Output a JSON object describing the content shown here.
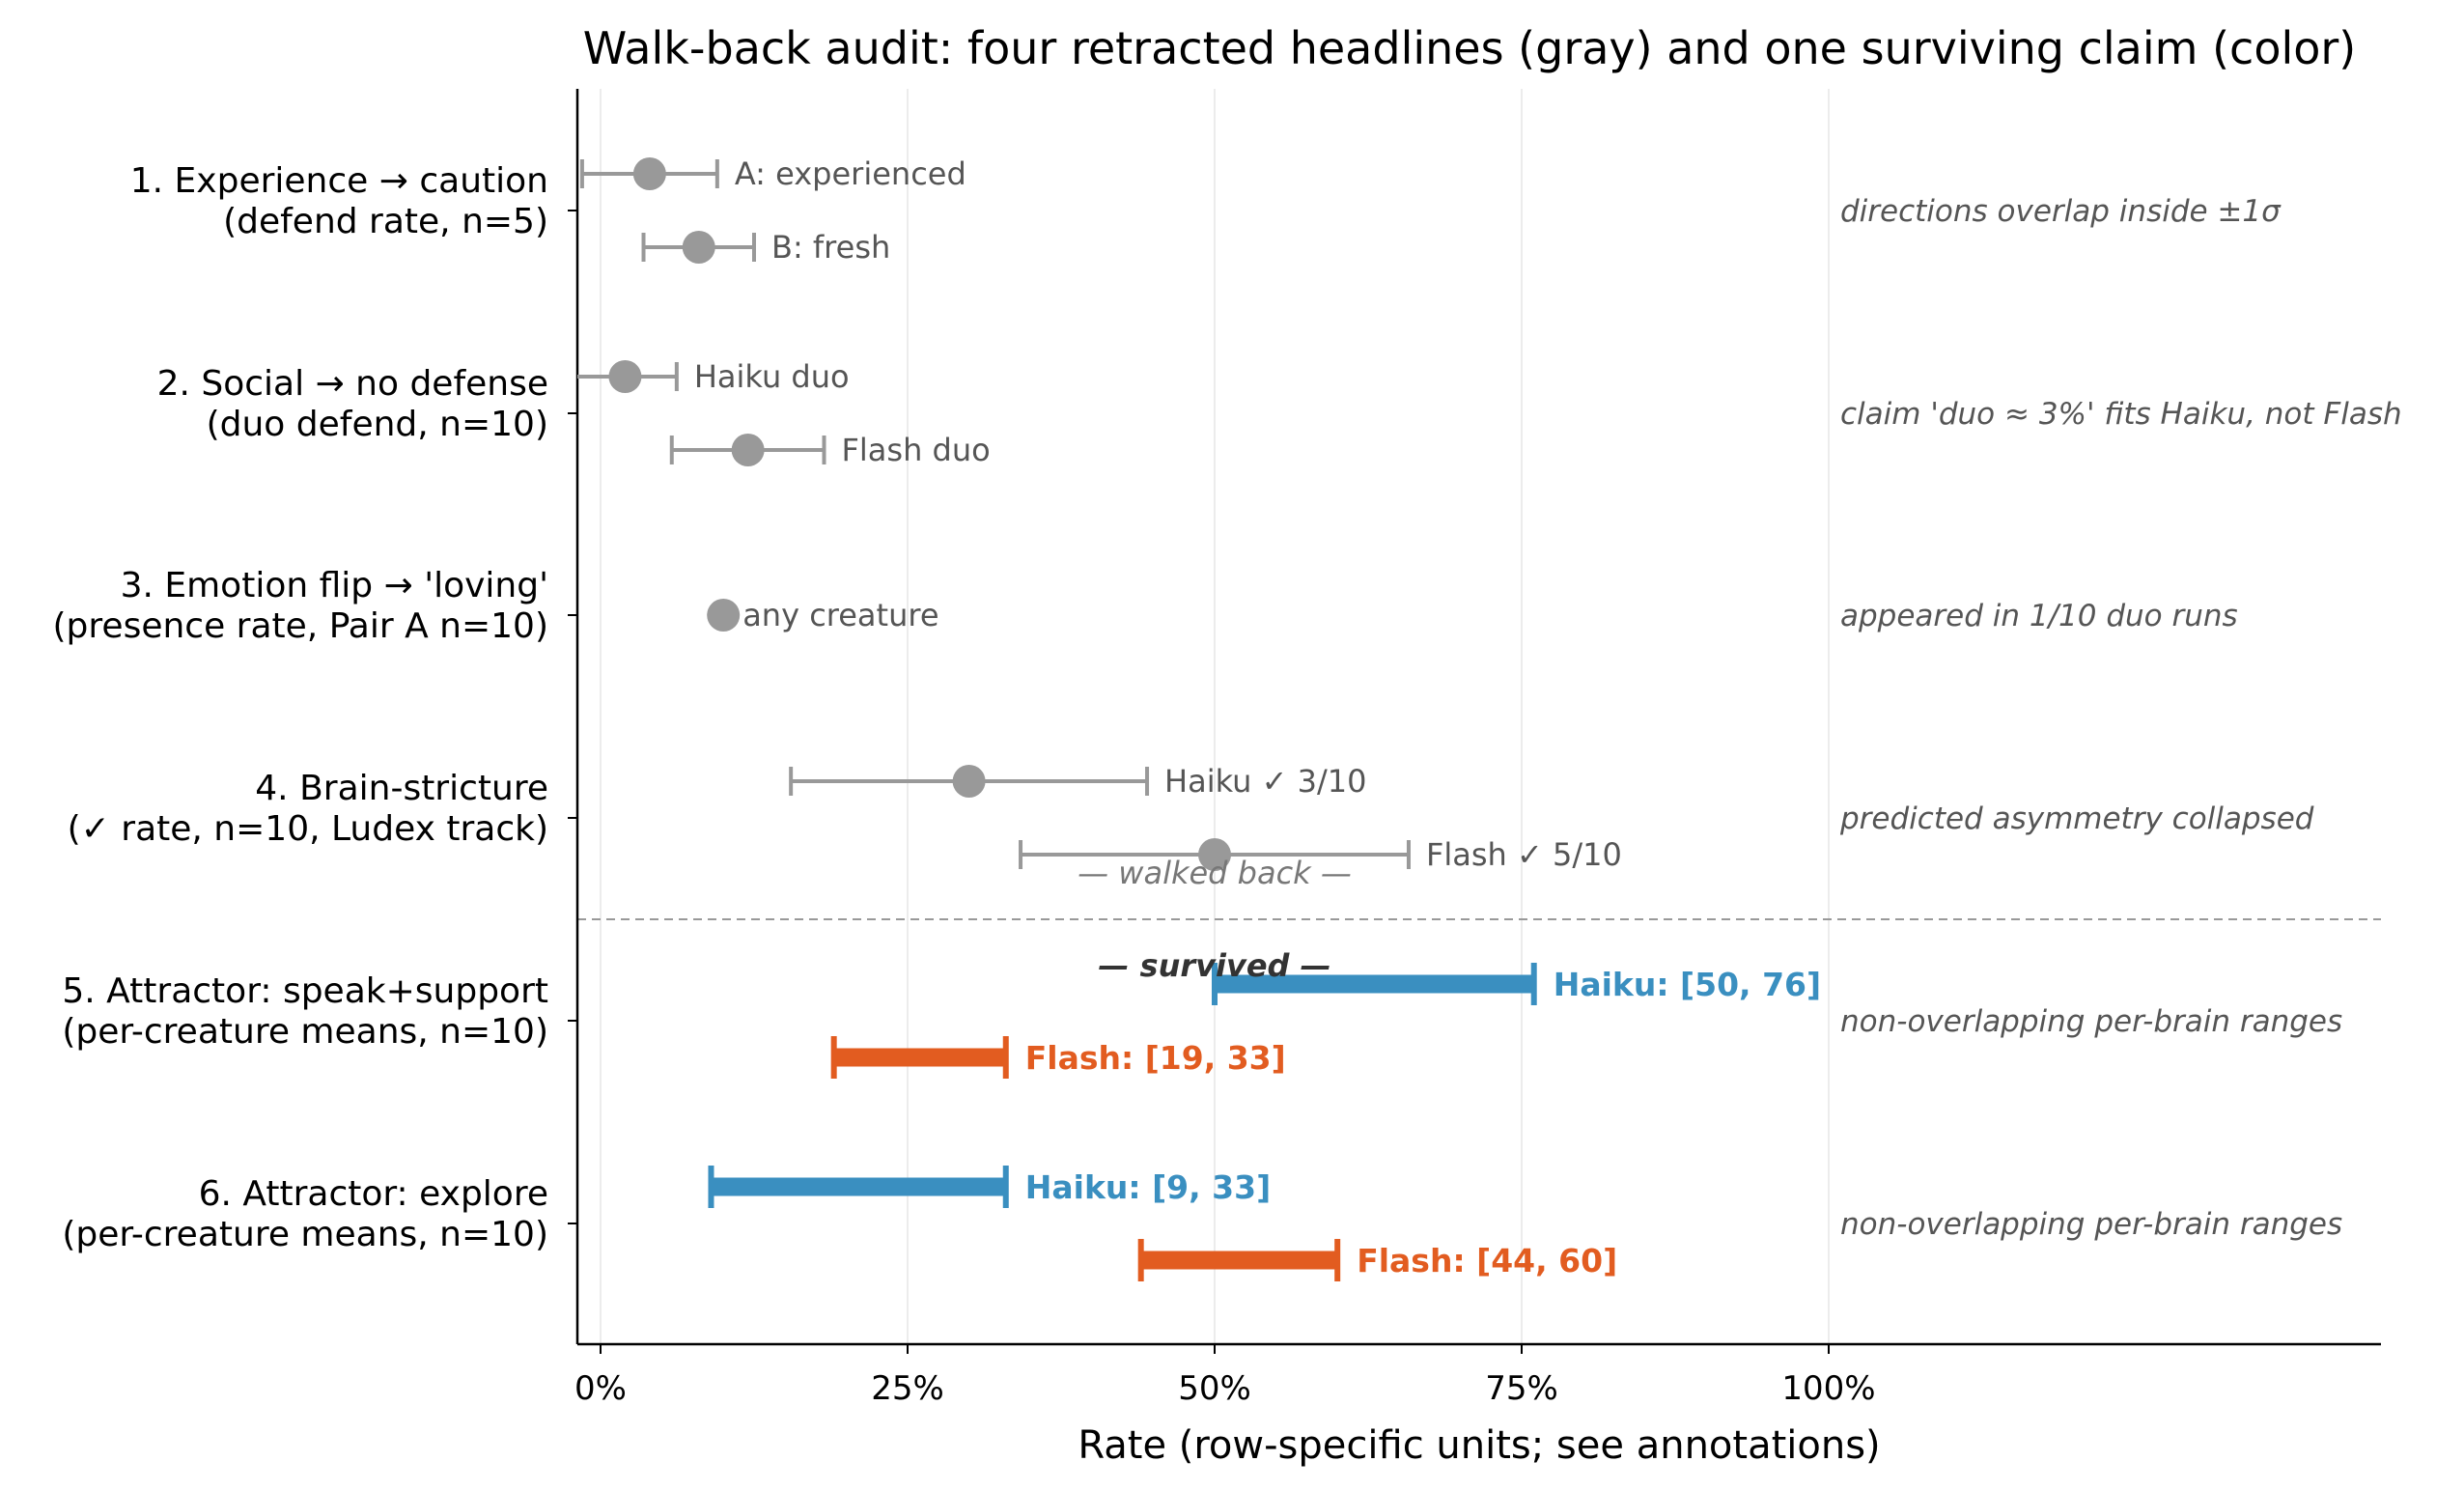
{
  "chart_data": {
    "type": "forest",
    "title": "Walk-back audit: four retracted headlines (gray) and one surviving claim (color)",
    "xlabel": "Rate (row-specific units; see annotations)",
    "xlim": [
      -2,
      145
    ],
    "x_ticks": [
      0,
      25,
      50,
      75,
      100
    ],
    "x_tick_labels": [
      "0%",
      "25%",
      "50%",
      "75%",
      "100%"
    ],
    "grid": "vertical",
    "colors": {
      "gray": "#999999",
      "haiku": "#3a8fc0",
      "flash": "#e25c20"
    },
    "rows": [
      {
        "label_line1": "1. Experience → caution",
        "label_line2": "(defend rate, n=5)",
        "note": "directions overlap inside ±1σ",
        "status": "walked back",
        "items": [
          {
            "label": "A: experienced",
            "value": 4,
            "low": -1.5,
            "high": 9.5,
            "color": "gray"
          },
          {
            "label": "B: fresh",
            "value": 8,
            "low": 3.5,
            "high": 12.5,
            "color": "gray"
          }
        ]
      },
      {
        "label_line1": "2. Social → no defense",
        "label_line2": "(duo defend, n=10)",
        "note": "claim 'duo ≈ 3%' fits Haiku, not Flash",
        "status": "walked back",
        "items": [
          {
            "label": "Haiku duo",
            "value": 2,
            "low": -2,
            "high": 6.2,
            "color": "gray"
          },
          {
            "label": "Flash duo",
            "value": 12,
            "low": 5.8,
            "high": 18.2,
            "color": "gray"
          }
        ]
      },
      {
        "label_line1": "3. Emotion flip → 'loving'",
        "label_line2": "(presence rate, Pair A n=10)",
        "note": "appeared in 1/10 duo runs",
        "status": "walked back",
        "items": [
          {
            "label": "any creature",
            "value": 10,
            "color": "gray"
          }
        ]
      },
      {
        "label_line1": "4. Brain-stricture",
        "label_line2": "(✓ rate, n=10, Ludex track)",
        "note": "predicted asymmetry collapsed",
        "status": "walked back",
        "items": [
          {
            "label": "Haiku ✓ 3/10",
            "value": 30,
            "low": 15.5,
            "high": 44.5,
            "color": "gray"
          },
          {
            "label": "Flash ✓ 5/10",
            "value": 50,
            "low": 34.2,
            "high": 65.8,
            "color": "gray"
          }
        ]
      },
      {
        "label_line1": "5. Attractor: speak+support",
        "label_line2": "(per-creature means, n=10)",
        "note": "non-overlapping per-brain ranges",
        "status": "survived",
        "items": [
          {
            "label": "Haiku: [50, 76]",
            "low": 50,
            "high": 76,
            "color": "haiku"
          },
          {
            "label": "Flash: [19, 33]",
            "low": 19,
            "high": 33,
            "color": "flash"
          }
        ]
      },
      {
        "label_line1": "6. Attractor: explore",
        "label_line2": "(per-creature means, n=10)",
        "note": "non-overlapping per-brain ranges",
        "status": "survived",
        "items": [
          {
            "label": "Haiku: [9, 33]",
            "low": 9,
            "high": 33,
            "color": "haiku"
          },
          {
            "label": "Flash: [44, 60]",
            "low": 44,
            "high": 60,
            "color": "flash"
          }
        ]
      }
    ],
    "section_labels": {
      "walked_back": "— walked back —",
      "survived": "— survived —"
    }
  }
}
